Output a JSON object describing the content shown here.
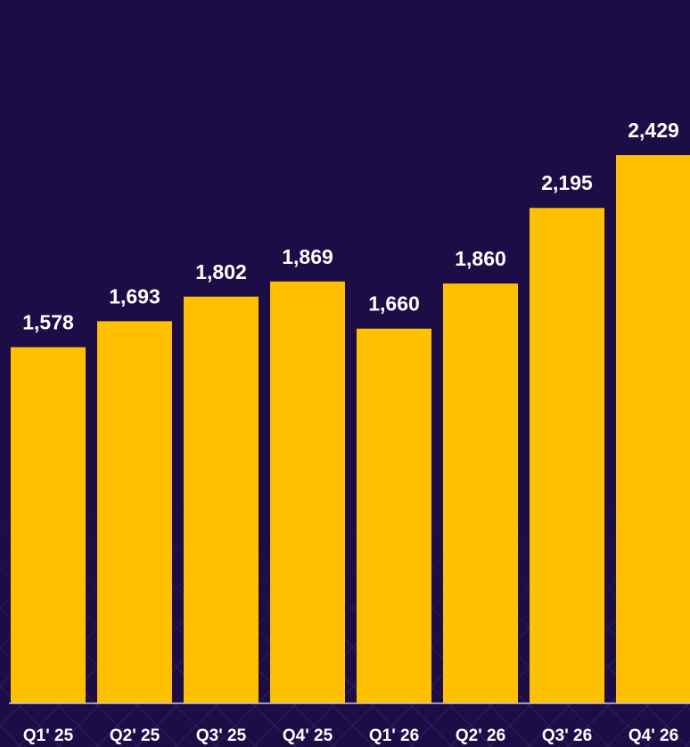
{
  "chart_data": {
    "type": "bar",
    "categories": [
      "Q1' 25",
      "Q2' 25",
      "Q3' 25",
      "Q4' 25",
      "Q1' 26",
      "Q2' 26",
      "Q3' 26",
      "Q4' 26"
    ],
    "values": [
      1578,
      1693,
      1802,
      1869,
      1660,
      1860,
      2195,
      2429
    ],
    "value_labels": [
      "1,578",
      "1,693",
      "1,802",
      "1,869",
      "1,660",
      "1,860",
      "2,195",
      "2,429"
    ],
    "title": "",
    "xlabel": "",
    "ylabel": "",
    "ylim": [
      0,
      2600
    ],
    "grid": false,
    "legend": "none",
    "colors": {
      "background": "#1c0d47",
      "bar": "#ffc000",
      "text": "#ffffff",
      "axis": "#c9c4d9"
    }
  }
}
